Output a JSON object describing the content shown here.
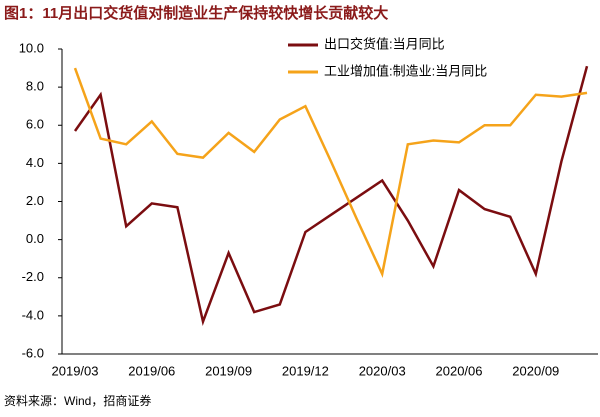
{
  "chart_data": {
    "type": "line",
    "title": "图1：11月出口交货值对制造业生产保持较快增长贡献较大",
    "source": "资料来源：Wind，招商证券",
    "categories": [
      "2019/03",
      null,
      null,
      "2019/06",
      null,
      null,
      "2019/09",
      null,
      null,
      "2019/12",
      null,
      null,
      "2020/03",
      null,
      null,
      "2020/06",
      null,
      null,
      "2020/09",
      null,
      null
    ],
    "series": [
      {
        "name": "出口交货值:当月同比",
        "color": "#7b0d10",
        "values": [
          5.7,
          7.6,
          0.7,
          1.9,
          1.7,
          -4.3,
          -0.7,
          -3.8,
          -3.4,
          0.4,
          1.3,
          2.2,
          3.1,
          1.0,
          -1.4,
          2.6,
          1.6,
          1.2,
          -1.8,
          4.1,
          9.1
        ]
      },
      {
        "name": "工业增加值:制造业:当月同比",
        "color": "#f5a31a",
        "values": [
          9.0,
          5.3,
          5.0,
          6.2,
          4.5,
          4.3,
          5.6,
          4.6,
          6.3,
          7.0,
          4.1,
          1.1,
          -1.8,
          5.0,
          5.2,
          5.1,
          6.0,
          6.0,
          7.6,
          7.5,
          7.7
        ]
      }
    ],
    "ylim": [
      -6,
      10
    ],
    "yticks": [
      {
        "value": -6,
        "label": "-6.0"
      },
      {
        "value": -4,
        "label": "-4.0"
      },
      {
        "value": -2,
        "label": "-2.0"
      },
      {
        "value": 0,
        "label": "0.0"
      },
      {
        "value": 2,
        "label": "2.0"
      },
      {
        "value": 4,
        "label": "4.0"
      },
      {
        "value": 6,
        "label": "6.0"
      },
      {
        "value": 8,
        "label": "8.0"
      },
      {
        "value": 10,
        "label": "10.0"
      }
    ],
    "legend": "top-center"
  }
}
